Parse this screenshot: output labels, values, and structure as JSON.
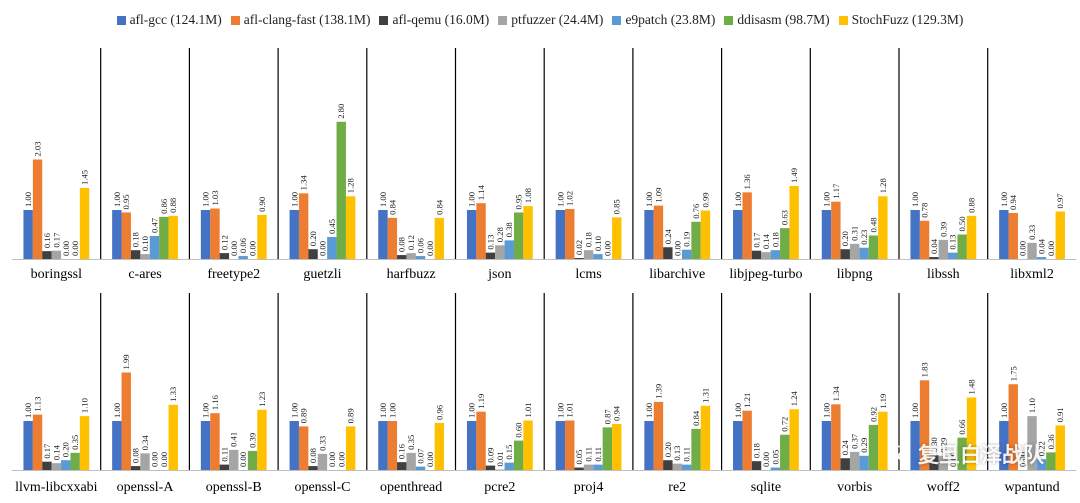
{
  "chart_data": {
    "type": "bar",
    "legend_position": "top",
    "colors": [
      "#4472C4",
      "#ED7D31",
      "#404040",
      "#A5A5A5",
      "#5B9BD5",
      "#70AD47",
      "#FFC000"
    ],
    "series": [
      {
        "name": "afl-gcc (124.1M)"
      },
      {
        "name": "afl-clang-fast (138.1M)"
      },
      {
        "name": "afl-qemu (16.0M)"
      },
      {
        "name": "ptfuzzer (24.4M)"
      },
      {
        "name": "e9patch (23.8M)"
      },
      {
        "name": "ddisasm (98.7M)"
      },
      {
        "name": "StochFuzz (129.3M)"
      }
    ],
    "rows": [
      {
        "categories": [
          "boringssl",
          "c-ares",
          "freetype2",
          "guetzli",
          "harfbuzz",
          "json",
          "lcms",
          "libarchive",
          "libjpeg-turbo",
          "libpng",
          "libssh",
          "libxml2"
        ],
        "values": [
          [
            1.0,
            2.03,
            0.16,
            0.17,
            0.0,
            0.0,
            1.45
          ],
          [
            1.0,
            0.95,
            0.18,
            0.1,
            0.47,
            0.86,
            0.88
          ],
          [
            1.0,
            1.03,
            0.12,
            0.0,
            0.06,
            0.0,
            0.9
          ],
          [
            1.0,
            1.34,
            0.2,
            0.0,
            0.45,
            2.8,
            1.28
          ],
          [
            1.0,
            0.84,
            0.08,
            0.12,
            0.06,
            0.0,
            0.84
          ],
          [
            1.0,
            1.14,
            0.13,
            0.28,
            0.38,
            0.95,
            1.08
          ],
          [
            1.0,
            1.02,
            0.02,
            0.18,
            0.1,
            0.0,
            0.85
          ],
          [
            1.0,
            1.09,
            0.24,
            0.0,
            0.19,
            0.76,
            0.99
          ],
          [
            1.0,
            1.36,
            0.17,
            0.14,
            0.18,
            0.63,
            1.49
          ],
          [
            1.0,
            1.17,
            0.2,
            0.31,
            0.23,
            0.48,
            1.28
          ],
          [
            1.0,
            0.78,
            0.04,
            0.39,
            0.13,
            0.5,
            0.88
          ],
          [
            1.0,
            0.94,
            0.0,
            0.33,
            0.04,
            0.0,
            0.97
          ]
        ]
      },
      {
        "categories": [
          "llvm-libcxxabi",
          "openssl-A",
          "openssl-B",
          "openssl-C",
          "openthread",
          "pcre2",
          "proj4",
          "re2",
          "sqlite",
          "vorbis",
          "woff2",
          "wpantund"
        ],
        "values": [
          [
            1.0,
            1.13,
            0.17,
            0.14,
            0.2,
            0.35,
            1.1
          ],
          [
            1.0,
            1.99,
            0.08,
            0.34,
            0.0,
            0.0,
            1.33
          ],
          [
            1.0,
            1.16,
            0.11,
            0.41,
            0.0,
            0.39,
            1.23
          ],
          [
            1.0,
            0.89,
            0.08,
            0.33,
            0.0,
            0.0,
            0.89
          ],
          [
            1.0,
            1.0,
            0.16,
            0.35,
            0.07,
            0.0,
            0.96
          ],
          [
            1.0,
            1.19,
            0.09,
            0.01,
            0.15,
            0.6,
            1.01
          ],
          [
            1.0,
            1.01,
            0.05,
            0.11,
            0.11,
            0.87,
            0.94
          ],
          [
            1.0,
            1.39,
            0.2,
            0.13,
            0.11,
            0.84,
            1.31
          ],
          [
            1.0,
            1.21,
            0.18,
            0.0,
            0.05,
            0.72,
            1.24
          ],
          [
            1.0,
            1.34,
            0.24,
            0.37,
            0.29,
            0.92,
            1.19
          ],
          [
            1.0,
            1.83,
            0.3,
            0.29,
            0.0,
            0.66,
            1.48
          ],
          [
            1.0,
            1.75,
            0.0,
            1.1,
            0.22,
            0.36,
            0.91
          ]
        ]
      }
    ]
  },
  "watermark": {
    "text": "复旦白泽战队",
    "logo_icon": "wechat-logo-icon"
  }
}
